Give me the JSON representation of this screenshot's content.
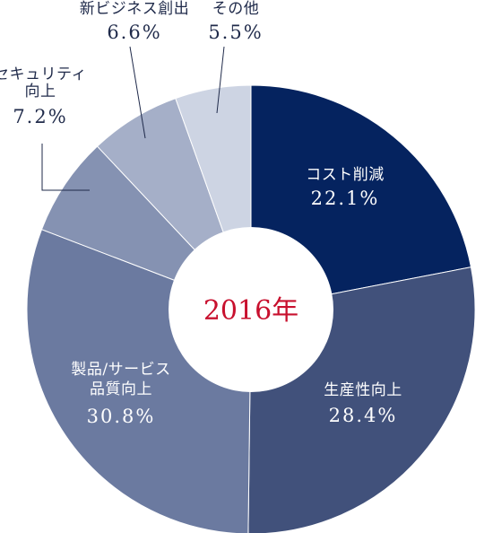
{
  "chart_data": {
    "type": "pie",
    "title": "",
    "center_label": "2016年",
    "center_color": "#c8102e",
    "slices": [
      {
        "name": "コスト削減",
        "value_label": "22.1%",
        "value": 22.1,
        "color": "#05235f",
        "text_color": "#ffffff",
        "label_lines": [
          "コスト削減"
        ]
      },
      {
        "name": "生産性向上",
        "value_label": "28.4%",
        "value": 28.4,
        "color": "#41517b",
        "text_color": "#ffffff",
        "label_lines": [
          "生産性向上"
        ]
      },
      {
        "name": "製品/サービス品質向上",
        "value_label": "30.8%",
        "value": 30.8,
        "color": "#6b7aa0",
        "text_color": "#ffffff",
        "label_lines": [
          "製品/サービス",
          "品質向上"
        ]
      },
      {
        "name": "セキュリティ向上",
        "value_label": "7.2%",
        "value": 7.2,
        "color": "#8592b2",
        "text_color": "#1f2a4a",
        "label_lines": [
          "セキュリティ",
          "向上"
        ]
      },
      {
        "name": "新ビジネス創出",
        "value_label": "6.6%",
        "value": 6.6,
        "color": "#a5afc8",
        "text_color": "#1f2a4a",
        "label_lines": [
          "新ビジネス創出"
        ]
      },
      {
        "name": "その他",
        "value_label": "5.5%",
        "value": 5.5,
        "color": "#cdd4e3",
        "text_color": "#1f2a4a",
        "label_lines": [
          "その他"
        ]
      }
    ]
  }
}
